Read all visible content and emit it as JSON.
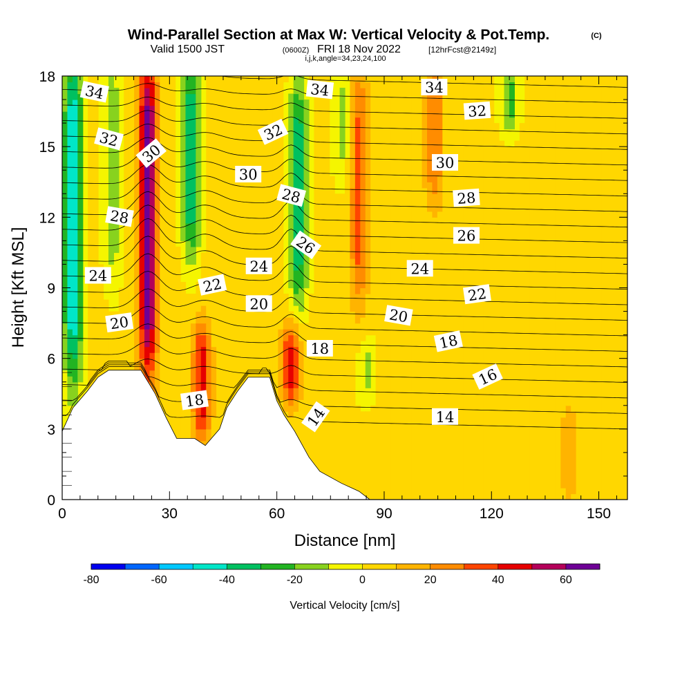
{
  "header": {
    "title": "Wind-Parallel Section at Max W: Vertical Velocity & Pot.Temp.",
    "title_mark": "(C)",
    "valid_a": "Valid 1500 JST",
    "valid_b": "(0600Z)",
    "valid_c": "FRI 18 Nov 2022",
    "valid_d": "[12hrFcst@2149z]",
    "params": "i,j,k,angle=34,23,24,100"
  },
  "chart_data": {
    "type": "heatmap",
    "xlabel": "Distance [nm]",
    "ylabel": "Height [Kft MSL]",
    "xlim": [
      0,
      158
    ],
    "ylim": [
      0,
      18
    ],
    "x_ticks": [
      "0",
      "30",
      "60",
      "90",
      "120",
      "150"
    ],
    "y_ticks": [
      "0",
      "3",
      "6",
      "9",
      "12",
      "15",
      "18"
    ],
    "grid": false,
    "fill_variable": "Vertical Velocity [cm/s]",
    "colorbar": {
      "label": "Vertical Velocity [cm/s]",
      "min": -80,
      "max": 70,
      "step": 10,
      "tick_labels": [
        "-80",
        "-60",
        "-40",
        "-20",
        "0",
        "20",
        "40",
        "60"
      ],
      "colors": [
        "#0000ee",
        "#0066ff",
        "#00c8ff",
        "#00e6c8",
        "#00c060",
        "#22b422",
        "#88d21e",
        "#f5f500",
        "#ffd700",
        "#ffb400",
        "#ff8c00",
        "#ff4500",
        "#e60000",
        "#b4005a",
        "#6e0096"
      ]
    },
    "updraft_features": [
      {
        "x": 24,
        "y_range": [
          6,
          18
        ],
        "peak": 65
      },
      {
        "x": 39,
        "y_range": [
          3,
          7
        ],
        "peak": 40
      },
      {
        "x": 64,
        "y_range": [
          4.5,
          7
        ],
        "peak": 40
      },
      {
        "x": 83,
        "y_range": [
          9,
          17.5
        ],
        "peak": 30
      },
      {
        "x": 104,
        "y_range": [
          13,
          18
        ],
        "peak": 25
      },
      {
        "x": 142,
        "y_range": [
          0.5,
          3.5
        ],
        "peak": 15
      }
    ],
    "downdraft_features": [
      {
        "x": 3,
        "y_range": [
          6,
          18
        ],
        "peak": -55
      },
      {
        "x": 14,
        "y_range": [
          10,
          18
        ],
        "peak": -20
      },
      {
        "x": 36,
        "y_range": [
          11,
          18
        ],
        "peak": -40
      },
      {
        "x": 66,
        "y_range": [
          9,
          17
        ],
        "peak": -40
      },
      {
        "x": 78,
        "y_range": [
          14,
          18
        ],
        "peak": -15
      },
      {
        "x": 85,
        "y_range": [
          4.5,
          6.5
        ],
        "peak": -15
      },
      {
        "x": 125,
        "y_range": [
          16,
          18
        ],
        "peak": -25
      }
    ],
    "contour_variable": "Potential Temperature",
    "contour_interval": 1,
    "contour_labels": [
      {
        "text": "34",
        "x": 9,
        "y": 17.3,
        "angle": 12
      },
      {
        "text": "34",
        "x": 72,
        "y": 17.4,
        "angle": 6
      },
      {
        "text": "34",
        "x": 104,
        "y": 17.5,
        "angle": 0
      },
      {
        "text": "32",
        "x": 13,
        "y": 15.3,
        "angle": 15
      },
      {
        "text": "32",
        "x": 59,
        "y": 15.6,
        "angle": -25
      },
      {
        "text": "32",
        "x": 116,
        "y": 16.5,
        "angle": -4
      },
      {
        "text": "30",
        "x": 25,
        "y": 14.7,
        "angle": -40
      },
      {
        "text": "30",
        "x": 52,
        "y": 13.8,
        "angle": 0
      },
      {
        "text": "30",
        "x": 107,
        "y": 14.3,
        "angle": 0
      },
      {
        "text": "28",
        "x": 16,
        "y": 12.0,
        "angle": 10
      },
      {
        "text": "28",
        "x": 64,
        "y": 12.9,
        "angle": 15
      },
      {
        "text": "28",
        "x": 113,
        "y": 12.8,
        "angle": -4
      },
      {
        "text": "26",
        "x": 68,
        "y": 10.8,
        "angle": 35
      },
      {
        "text": "26",
        "x": 113,
        "y": 11.2,
        "angle": 0
      },
      {
        "text": "24",
        "x": 10,
        "y": 9.5,
        "angle": 0
      },
      {
        "text": "24",
        "x": 55,
        "y": 9.9,
        "angle": 0
      },
      {
        "text": "24",
        "x": 100,
        "y": 9.8,
        "angle": 0
      },
      {
        "text": "22",
        "x": 42,
        "y": 9.1,
        "angle": -12
      },
      {
        "text": "22",
        "x": 116,
        "y": 8.7,
        "angle": -8
      },
      {
        "text": "20",
        "x": 16,
        "y": 7.5,
        "angle": -8
      },
      {
        "text": "20",
        "x": 55,
        "y": 8.3,
        "angle": 0
      },
      {
        "text": "20",
        "x": 94,
        "y": 7.8,
        "angle": 10
      },
      {
        "text": "18",
        "x": 37,
        "y": 4.2,
        "angle": -8
      },
      {
        "text": "18",
        "x": 72,
        "y": 6.4,
        "angle": 0
      },
      {
        "text": "18",
        "x": 108,
        "y": 6.7,
        "angle": -12
      },
      {
        "text": "16",
        "x": 119,
        "y": 5.2,
        "angle": -25
      },
      {
        "text": "14",
        "x": 71,
        "y": 3.5,
        "angle": -55
      },
      {
        "text": "14",
        "x": 107,
        "y": 3.5,
        "angle": 0
      }
    ],
    "terrain": [
      [
        0,
        2.9
      ],
      [
        3,
        3.9
      ],
      [
        7,
        4.6
      ],
      [
        10,
        5.2
      ],
      [
        13,
        5.5
      ],
      [
        22,
        5.5
      ],
      [
        26,
        4.5
      ],
      [
        29,
        3.5
      ],
      [
        32,
        2.6
      ],
      [
        37,
        2.6
      ],
      [
        40,
        2.3
      ],
      [
        44,
        3.0
      ],
      [
        46,
        3.9
      ],
      [
        49,
        4.6
      ],
      [
        52,
        5.2
      ],
      [
        58,
        5.2
      ],
      [
        60,
        4.2
      ],
      [
        62,
        3.6
      ],
      [
        65,
        2.9
      ],
      [
        69,
        1.8
      ],
      [
        72,
        1.2
      ],
      [
        78,
        0.7
      ],
      [
        83,
        0.35
      ],
      [
        86,
        0
      ]
    ]
  }
}
